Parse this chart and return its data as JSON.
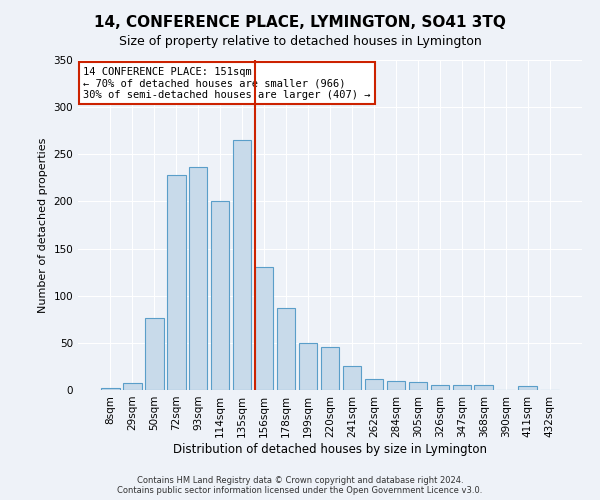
{
  "title": "14, CONFERENCE PLACE, LYMINGTON, SO41 3TQ",
  "subtitle": "Size of property relative to detached houses in Lymington",
  "xlabel": "Distribution of detached houses by size in Lymington",
  "ylabel": "Number of detached properties",
  "bin_labels": [
    "8sqm",
    "29sqm",
    "50sqm",
    "72sqm",
    "93sqm",
    "114sqm",
    "135sqm",
    "156sqm",
    "178sqm",
    "199sqm",
    "220sqm",
    "241sqm",
    "262sqm",
    "284sqm",
    "305sqm",
    "326sqm",
    "347sqm",
    "368sqm",
    "390sqm",
    "411sqm",
    "432sqm"
  ],
  "bar_values": [
    2,
    7,
    76,
    228,
    236,
    200,
    265,
    130,
    87,
    50,
    46,
    25,
    12,
    10,
    8,
    5,
    5,
    5,
    0,
    4,
    0
  ],
  "bar_color": "#c8daea",
  "bar_edge_color": "#5a9ec9",
  "vline_bin_index": 7,
  "vline_color": "#cc2200",
  "annotation_text": "14 CONFERENCE PLACE: 151sqm\n← 70% of detached houses are smaller (966)\n30% of semi-detached houses are larger (407) →",
  "annotation_box_color": "#ffffff",
  "annotation_box_edge_color": "#cc2200",
  "ylim": [
    0,
    350
  ],
  "yticks": [
    0,
    50,
    100,
    150,
    200,
    250,
    300,
    350
  ],
  "footer_lines": [
    "Contains HM Land Registry data © Crown copyright and database right 2024.",
    "Contains public sector information licensed under the Open Government Licence v3.0."
  ],
  "bg_color": "#eef2f8",
  "grid_color": "#ffffff",
  "title_fontsize": 11,
  "subtitle_fontsize": 9
}
